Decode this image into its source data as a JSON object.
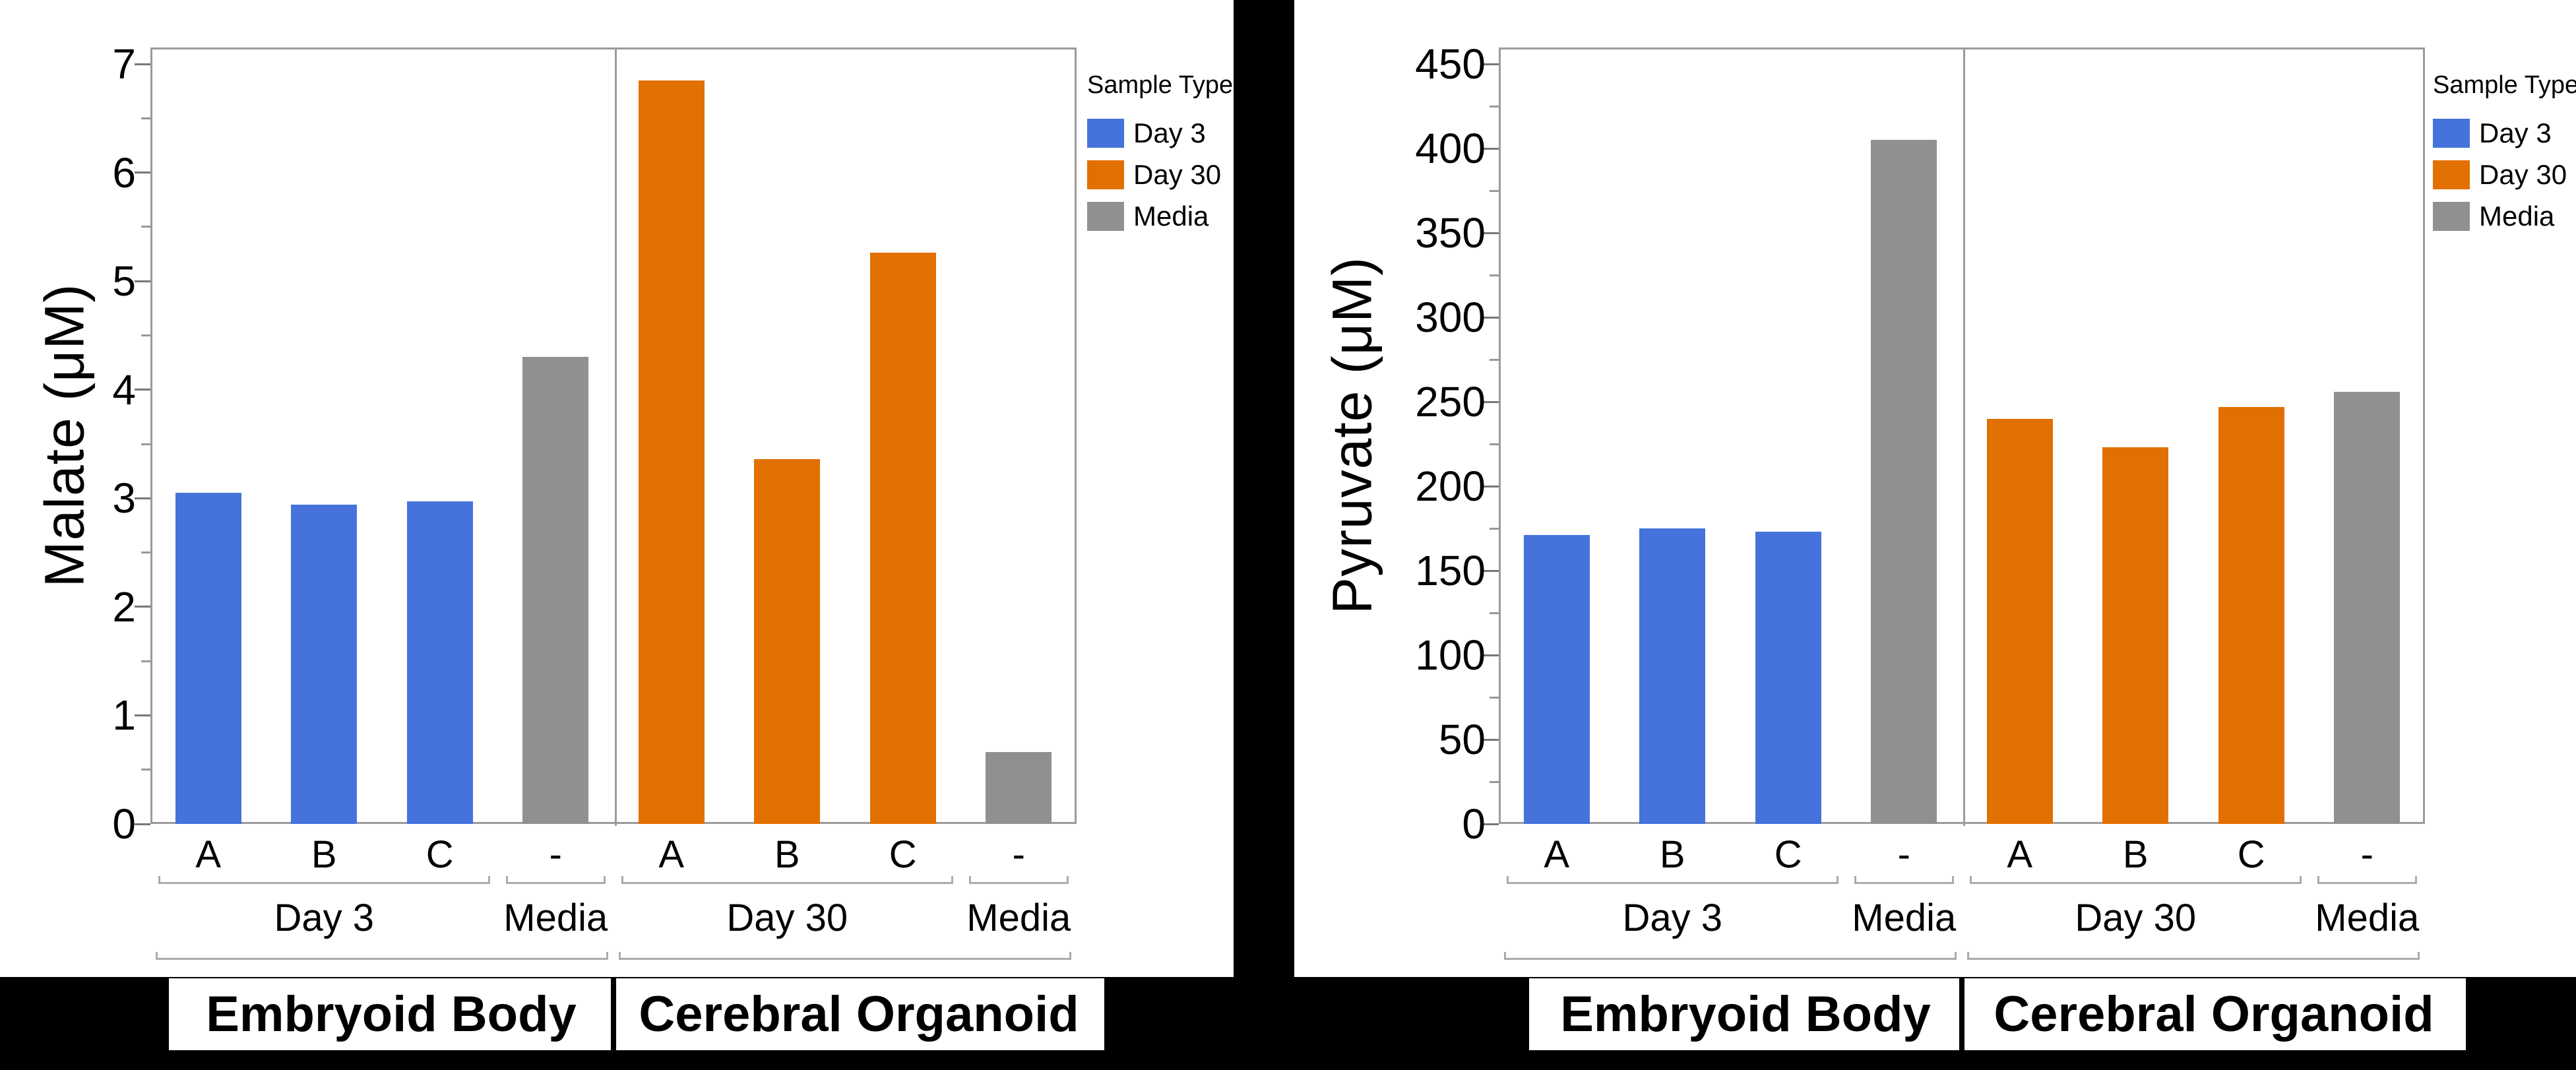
{
  "legend": {
    "title": "Sample Type",
    "entries": [
      {
        "label": "Day 3",
        "color": "#4573DB"
      },
      {
        "label": "Day 30",
        "color": "#E17000"
      },
      {
        "label": "Media",
        "color": "#909090"
      }
    ]
  },
  "chart_data": [
    {
      "type": "bar",
      "title": "",
      "ylabel": "Malate (μM)",
      "xlabel": "",
      "ylim": [
        0,
        7
      ],
      "ytick_step": 1,
      "yminor_step": 0.5,
      "grid": false,
      "legend_position": "right",
      "categories": [
        "A",
        "B",
        "C",
        "-",
        "A",
        "B",
        "C",
        "-"
      ],
      "series": [
        "Day 3",
        "Day 3",
        "Day 3",
        "Media",
        "Day 30",
        "Day 30",
        "Day 30",
        "Media"
      ],
      "values": [
        3.05,
        2.94,
        2.97,
        4.3,
        6.85,
        3.36,
        5.26,
        0.66
      ],
      "level1_groups": [
        {
          "label": "Day 3",
          "start": 0,
          "end": 2
        },
        {
          "label": "Media",
          "start": 3,
          "end": 3
        },
        {
          "label": "Day 30",
          "start": 4,
          "end": 6
        },
        {
          "label": "Media",
          "start": 7,
          "end": 7
        }
      ],
      "level2_groups": [
        {
          "label": "Embryoid Body",
          "start": 0,
          "end": 3
        },
        {
          "label": "Cerebral Organoid",
          "start": 4,
          "end": 7
        }
      ]
    },
    {
      "type": "bar",
      "title": "",
      "ylabel": "Pyruvate (μM)",
      "xlabel": "",
      "ylim": [
        0,
        450
      ],
      "ytick_step": 50,
      "yminor_step": 25,
      "grid": false,
      "legend_position": "right",
      "categories": [
        "A",
        "B",
        "C",
        "-",
        "A",
        "B",
        "C",
        "-"
      ],
      "series": [
        "Day 3",
        "Day 3",
        "Day 3",
        "Media",
        "Day 30",
        "Day 30",
        "Day 30",
        "Media"
      ],
      "values": [
        171,
        175,
        173,
        405,
        240,
        223,
        247,
        256
      ],
      "level1_groups": [
        {
          "label": "Day 3",
          "start": 0,
          "end": 2
        },
        {
          "label": "Media",
          "start": 3,
          "end": 3
        },
        {
          "label": "Day 30",
          "start": 4,
          "end": 6
        },
        {
          "label": "Media",
          "start": 7,
          "end": 7
        }
      ],
      "level2_groups": [
        {
          "label": "Embryoid Body",
          "start": 0,
          "end": 3
        },
        {
          "label": "Cerebral Organoid",
          "start": 4,
          "end": 7
        }
      ]
    }
  ]
}
